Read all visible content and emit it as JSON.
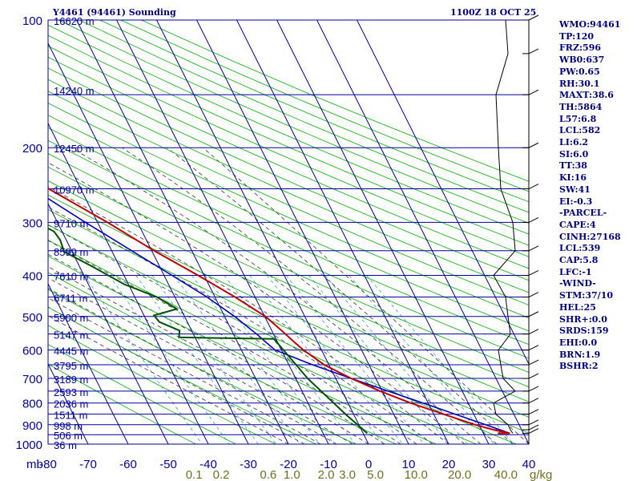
{
  "header": {
    "title_left": "Y4461 (94461) Sounding",
    "title_right": "1100Z 18 OCT 25"
  },
  "indices": [
    "WMO:94461",
    "TP:120",
    "FRZ:596",
    "WB0:637",
    "PW:0.65",
    "RH:30.1",
    "MAXT:38.6",
    "TH:5864",
    "L57:6.8",
    "LCL:582",
    "LI:6.2",
    "SI:6.0",
    "TT:38",
    "KI:16",
    "SW:41",
    "EI:-0.3",
    "-PARCEL-",
    "CAPE:4",
    "CINH:27168",
    "LCL:539",
    "CAP:5.8",
    "LFC:-1",
    "-WIND-",
    "STM:37/10",
    "HEL:25",
    "SHR+:0.0",
    "SRDS:159",
    "EHI:0.0",
    "BRN:1.9",
    "BSHR:2"
  ],
  "colors": {
    "isobar": "#0000a0",
    "isotherm": "#0000a0",
    "dry_adiabat": "#00b000",
    "moist_adiabat": "#303030",
    "mixing_ratio": "#30a0c0",
    "temperature": "#c00000",
    "dewpoint": "#005000",
    "parcel": "#0000c0",
    "wind": "#000000",
    "axis_text": "#0000a0",
    "mixing_text": "#707020"
  },
  "chart_data": {
    "type": "skew-t",
    "xlabel": "mb",
    "ylabel": "",
    "pressure_levels": [
      100,
      200,
      300,
      400,
      500,
      600,
      700,
      800,
      900,
      1000
    ],
    "temperature_ticks": [
      -80,
      -70,
      -60,
      -50,
      -40,
      -30,
      -20,
      -10,
      0,
      10,
      20,
      30,
      40
    ],
    "temperature_tick_labels": [
      "-80",
      "-70",
      "-60",
      "-50",
      "-40",
      "-30",
      "-20",
      "-10",
      "0",
      "10",
      "20",
      "30",
      "40"
    ],
    "mixing_ratio_labels": [
      "0.1",
      "0.2",
      "0.6",
      "1.0",
      "2.0",
      "3.0",
      "5.0",
      "10.0",
      "20.0",
      "40.0"
    ],
    "mixing_unit": "g/kg",
    "height_labels": [
      {
        "p": 100,
        "label": "16620 m"
      },
      {
        "p": 146,
        "label": "14240 m"
      },
      {
        "p": 200,
        "label": "12450 m"
      },
      {
        "p": 250,
        "label": "10970 m"
      },
      {
        "p": 300,
        "label": "9710 m"
      },
      {
        "p": 350,
        "label": "8599 m"
      },
      {
        "p": 400,
        "label": "7610 m"
      },
      {
        "p": 450,
        "label": "6711 m"
      },
      {
        "p": 500,
        "label": "5900 m"
      },
      {
        "p": 550,
        "label": "5147 m"
      },
      {
        "p": 600,
        "label": "4445 m"
      },
      {
        "p": 650,
        "label": "3795 m"
      },
      {
        "p": 700,
        "label": "3189 m"
      },
      {
        "p": 750,
        "label": "2593 m"
      },
      {
        "p": 800,
        "label": "2036 m"
      },
      {
        "p": 850,
        "label": "1511 m"
      },
      {
        "p": 900,
        "label": "998 m"
      },
      {
        "p": 950,
        "label": "506 m"
      },
      {
        "p": 1000,
        "label": "36 m"
      }
    ],
    "temperature_profile": [
      [
        943,
        36.6
      ],
      [
        925,
        33.0
      ],
      [
        900,
        29.0
      ],
      [
        850,
        22.5
      ],
      [
        800,
        15.6
      ],
      [
        750,
        9.5
      ],
      [
        700,
        3.9
      ],
      [
        650,
        -1.2
      ],
      [
        600,
        -4.5
      ],
      [
        575,
        -5.8
      ],
      [
        550,
        -7.0
      ],
      [
        500,
        -9.8
      ],
      [
        450,
        -15.0
      ],
      [
        400,
        -21.5
      ],
      [
        350,
        -29.4
      ],
      [
        300,
        -37.5
      ],
      [
        250,
        -48.0
      ],
      [
        200,
        -58.0
      ],
      [
        150,
        -71.0
      ],
      [
        120,
        -78.0
      ],
      [
        100,
        -80.0
      ]
    ],
    "dewpoint_profile": [
      [
        943,
        1.0
      ],
      [
        925,
        0.5
      ],
      [
        850,
        -2.0
      ],
      [
        700,
        -7.0
      ],
      [
        600,
        -9.5
      ],
      [
        565,
        -10.5
      ],
      [
        560,
        -34.0
      ],
      [
        540,
        -33.0
      ],
      [
        515,
        -37.0
      ],
      [
        497,
        -37.5
      ],
      [
        480,
        -31.0
      ],
      [
        450,
        -34.5
      ],
      [
        420,
        -41.0
      ],
      [
        380,
        -47.0
      ],
      [
        352,
        -52.0
      ],
      [
        330,
        -51.5
      ],
      [
        315,
        -52.0
      ],
      [
        280,
        -60.0
      ],
      [
        250,
        -66.0
      ],
      [
        200,
        -69.0
      ],
      [
        178,
        -72.0
      ],
      [
        150,
        -81.0
      ]
    ],
    "parcel_profile": [
      [
        943,
        36.6
      ],
      [
        900,
        31.6
      ],
      [
        850,
        25.4
      ],
      [
        800,
        18.7
      ],
      [
        700,
        3.9
      ],
      [
        650,
        -4.1
      ],
      [
        600,
        -11.6
      ],
      [
        575,
        -12.9
      ],
      [
        550,
        -14.2
      ],
      [
        500,
        -17.5
      ],
      [
        450,
        -22.0
      ],
      [
        400,
        -28.0
      ],
      [
        350,
        -35.0
      ],
      [
        300,
        -43.0
      ],
      [
        250,
        -52.0
      ],
      [
        200,
        -62.0
      ],
      [
        150,
        -74.0
      ],
      [
        130,
        -80.0
      ]
    ],
    "wind_levels": [
      943,
      925,
      900,
      850,
      800,
      750,
      700,
      650,
      600,
      550,
      500,
      450,
      400,
      350,
      300,
      250,
      200,
      150,
      120,
      100
    ]
  }
}
